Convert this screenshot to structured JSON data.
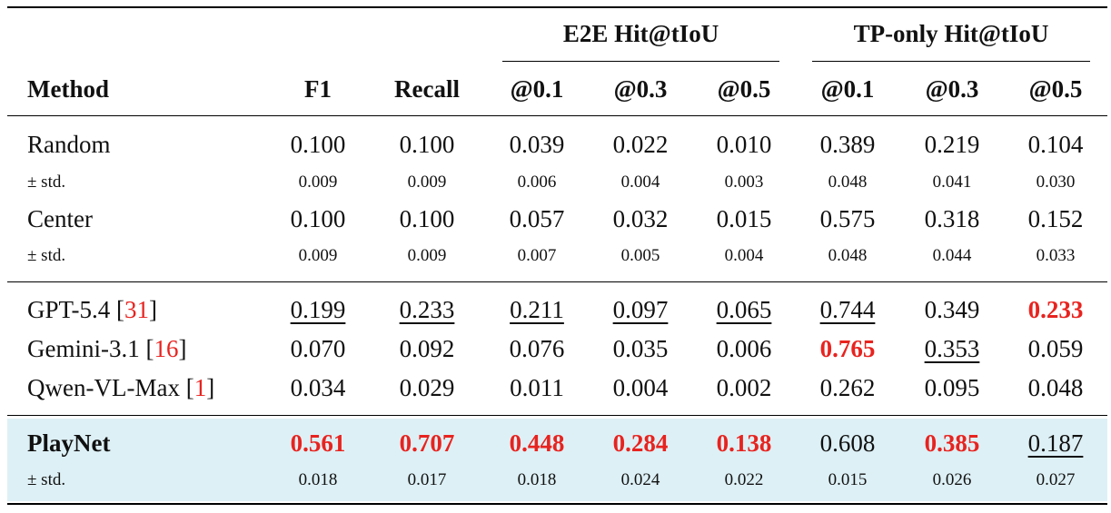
{
  "header": {
    "method": "Method",
    "f1": "F1",
    "recall": "Recall",
    "group_e2e": "E2E Hit@tIoU",
    "group_tp": "TP-only Hit@tIoU",
    "sub_cols": [
      "@0.1",
      "@0.3",
      "@0.5",
      "@0.1",
      "@0.3",
      "@0.5"
    ]
  },
  "colors": {
    "best": "#e8231f",
    "highlight_row": "#ddf0f5",
    "citation": "#e8231f"
  },
  "rows": [
    {
      "method": "Random",
      "values": [
        "0.100",
        "0.100",
        "0.039",
        "0.022",
        "0.010",
        "0.389",
        "0.219",
        "0.104"
      ],
      "std_label": "± std.",
      "std": [
        "0.009",
        "0.009",
        "0.006",
        "0.004",
        "0.003",
        "0.048",
        "0.041",
        "0.030"
      ]
    },
    {
      "method": "Center",
      "values": [
        "0.100",
        "0.100",
        "0.057",
        "0.032",
        "0.015",
        "0.575",
        "0.318",
        "0.152"
      ],
      "std_label": "± std.",
      "std": [
        "0.009",
        "0.009",
        "0.007",
        "0.005",
        "0.004",
        "0.048",
        "0.044",
        "0.033"
      ]
    },
    {
      "method": "GPT-5.4",
      "cite": "31",
      "values": [
        "0.199",
        "0.233",
        "0.211",
        "0.097",
        "0.065",
        "0.744",
        "0.349",
        "0.233"
      ]
    },
    {
      "method": "Gemini-3.1",
      "cite": "16",
      "values": [
        "0.070",
        "0.092",
        "0.076",
        "0.035",
        "0.006",
        "0.765",
        "0.353",
        "0.059"
      ]
    },
    {
      "method": "Qwen-VL-Max",
      "cite": "1",
      "values": [
        "0.034",
        "0.029",
        "0.011",
        "0.004",
        "0.002",
        "0.262",
        "0.095",
        "0.048"
      ]
    },
    {
      "method": "PlayNet",
      "values": [
        "0.561",
        "0.707",
        "0.448",
        "0.284",
        "0.138",
        "0.608",
        "0.385",
        "0.187"
      ],
      "std_label": "± std.",
      "std": [
        "0.018",
        "0.017",
        "0.018",
        "0.024",
        "0.022",
        "0.015",
        "0.026",
        "0.027"
      ]
    }
  ]
}
